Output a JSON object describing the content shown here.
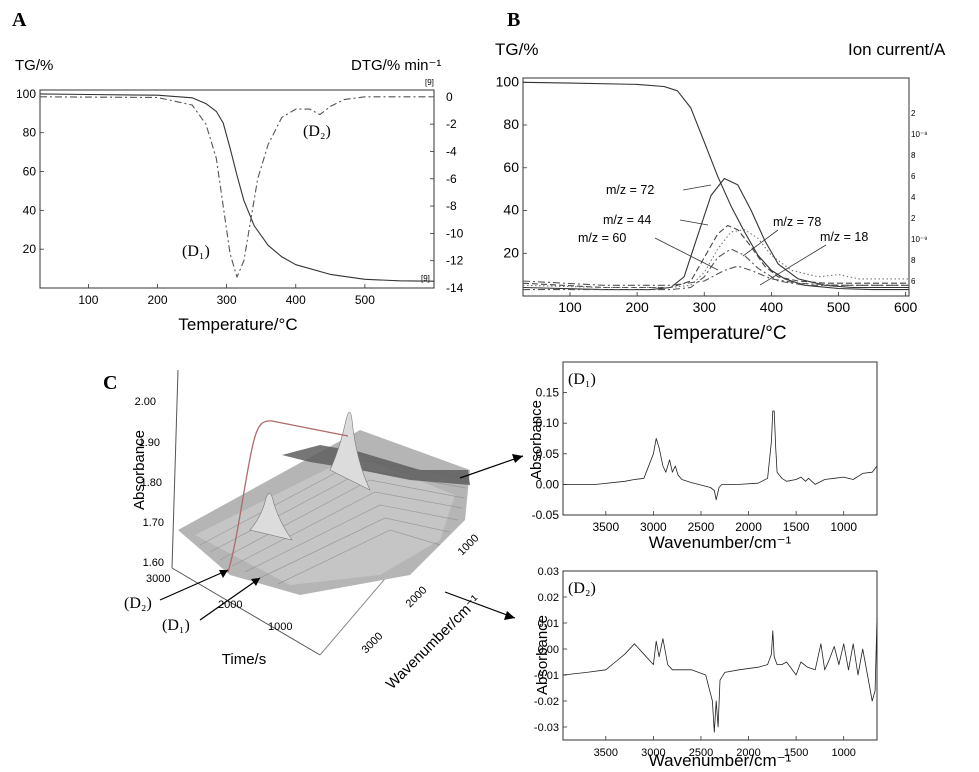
{
  "panels": {
    "A": {
      "letter": "A",
      "ylabel_left": "TG/%",
      "ylabel_right": "DTG/% min⁻¹",
      "xlabel": "Temperature/°C",
      "right_top_mark": "[9]",
      "right_bottom_mark": "[9]",
      "label_D1": "(D₁)",
      "label_D2": "(D₂)"
    },
    "B": {
      "letter": "B",
      "ylabel_left": "TG/%",
      "ylabel_right": "Ion current/A",
      "xlabel": "Temperature/°C",
      "mz_labels": [
        "m/z = 72",
        "m/z = 44",
        "m/z = 60",
        "m/z = 78",
        "m/z = 18"
      ]
    },
    "C": {
      "letter": "C",
      "zlabel": "Absorbance",
      "time_label": "Time/s",
      "wavenumber_label": "Wavenumber/cm⁻¹",
      "z_ticks": [
        "2.00",
        "1.90",
        "1.80",
        "1.70",
        "1.60"
      ],
      "time_ticks": [
        "3000",
        "2000",
        "1000"
      ],
      "wave_ticks": [
        "1000",
        "2000",
        "3000"
      ],
      "label_D1": "(D₁)",
      "label_D2": "(D₂)"
    },
    "D1": {
      "tag": "(D₁)",
      "ylabel": "Absorbance",
      "xlabel": "Wavenumber/cm⁻¹"
    },
    "D2": {
      "tag": "(D₂)",
      "ylabel": "Absorbance",
      "xlabel": "Wavenumber/cm⁻¹"
    }
  },
  "chart_data": [
    {
      "type": "line",
      "xlabel": "Temperature/°C",
      "ylabel": "TG/%",
      "y2label": "DTG/% min⁻¹",
      "xlim": [
        30,
        600
      ],
      "ylim": [
        0,
        102
      ],
      "y2lim": [
        -14,
        0.5
      ],
      "x_ticks": [
        100,
        200,
        300,
        400,
        500
      ],
      "y_ticks": [
        20,
        40,
        60,
        80,
        100
      ],
      "y2_ticks": [
        0,
        -2,
        -4,
        -6,
        -8,
        -10,
        -12,
        -14
      ],
      "series": [
        {
          "axis": "left",
          "style": "solid",
          "x": [
            30,
            100,
            200,
            250,
            270,
            285,
            295,
            305,
            315,
            325,
            340,
            360,
            380,
            400,
            450,
            500,
            550,
            600
          ],
          "y": [
            100,
            99.7,
            99.3,
            98,
            95,
            91,
            85,
            72,
            58,
            45,
            32,
            22,
            16,
            12,
            7,
            4.5,
            3.7,
            3.5
          ]
        },
        {
          "axis": "right",
          "style": "dashdot",
          "x": [
            30,
            200,
            250,
            270,
            285,
            295,
            305,
            315,
            325,
            335,
            345,
            360,
            380,
            400,
            420,
            435,
            450,
            470,
            500,
            600
          ],
          "y": [
            0,
            -0.05,
            -0.6,
            -2,
            -4.5,
            -8,
            -11.5,
            -13.2,
            -12,
            -9,
            -6,
            -3.5,
            -1.5,
            -0.9,
            -0.9,
            -1.3,
            -0.7,
            -0.2,
            0,
            0
          ]
        }
      ]
    },
    {
      "type": "line",
      "xlabel": "Temperature/°C",
      "ylabel": "TG/%",
      "y2label": "Ion current/A",
      "xlim": [
        30,
        605
      ],
      "ylim": [
        0,
        102
      ],
      "x_ticks": [
        100,
        200,
        300,
        400,
        500,
        600
      ],
      "y_ticks": [
        20,
        40,
        60,
        80,
        100
      ],
      "y2_tick_labels": [
        "2",
        "10⁻⁸",
        "8",
        "6",
        "4",
        "2",
        "10⁻⁹",
        "8",
        "6"
      ],
      "series": [
        {
          "name": "TG",
          "style": "solid",
          "x": [
            30,
            100,
            200,
            240,
            260,
            280,
            300,
            320,
            340,
            360,
            380,
            400,
            420,
            450,
            500,
            550,
            605
          ],
          "y": [
            100,
            99.6,
            99,
            98,
            96,
            88,
            72,
            56,
            42,
            30,
            19,
            12,
            8,
            5,
            3.5,
            3,
            3
          ]
        },
        {
          "name": "m/z = 72",
          "style": "solid",
          "x": [
            30,
            150,
            220,
            250,
            270,
            290,
            310,
            330,
            350,
            370,
            390,
            410,
            440,
            480,
            520,
            560,
            605
          ],
          "y": [
            4,
            3,
            3,
            4,
            9,
            28,
            47,
            55,
            52,
            40,
            26,
            15,
            8,
            5,
            4,
            4,
            4
          ]
        },
        {
          "name": "m/z = 44",
          "style": "dashed",
          "x": [
            30,
            150,
            250,
            280,
            300,
            320,
            335,
            350,
            370,
            390,
            410,
            440,
            480,
            520,
            560,
            605
          ],
          "y": [
            6,
            4,
            4,
            7,
            18,
            29,
            33,
            31,
            23,
            14,
            9,
            7,
            6,
            6,
            6,
            6
          ]
        },
        {
          "name": "m/z = 78",
          "style": "dotted",
          "x": [
            30,
            150,
            250,
            280,
            300,
            320,
            340,
            360,
            380,
            400,
            430,
            470,
            500,
            530,
            560,
            605
          ],
          "y": [
            5,
            4,
            4,
            5,
            11,
            22,
            30,
            31,
            27,
            19,
            12,
            9,
            10,
            8,
            8,
            8
          ]
        },
        {
          "name": "m/z = 60",
          "style": "dashdot",
          "x": [
            30,
            150,
            250,
            280,
            300,
            320,
            340,
            360,
            380,
            410,
            450,
            500,
            550,
            605
          ],
          "y": [
            3,
            3,
            3,
            4,
            9,
            18,
            22,
            19,
            13,
            7,
            5,
            5,
            5,
            5
          ]
        },
        {
          "name": "m/z = 18",
          "style": "dashdot",
          "x": [
            30,
            150,
            250,
            300,
            330,
            350,
            370,
            400,
            440,
            500,
            605
          ],
          "y": [
            7,
            5,
            5,
            7,
            12,
            14,
            12,
            8,
            6,
            5,
            5
          ]
        }
      ]
    },
    {
      "type": "line",
      "ylabel": "Absorbance",
      "xlabel": "Wavenumber/cm⁻¹",
      "xlim": [
        3950,
        650
      ],
      "ylim": [
        -0.05,
        0.2
      ],
      "x_ticks": [
        3500,
        3000,
        2500,
        2000,
        1500,
        1000
      ],
      "y_ticks": [
        -0.05,
        0.0,
        0.05,
        0.1,
        0.15
      ],
      "series": [
        {
          "x": [
            3950,
            3600,
            3300,
            3200,
            3100,
            3000,
            2970,
            2940,
            2900,
            2870,
            2830,
            2800,
            2770,
            2740,
            2700,
            2600,
            2400,
            2360,
            2340,
            2310,
            2280,
            2100,
            1900,
            1800,
            1760,
            1745,
            1730,
            1715,
            1700,
            1650,
            1600,
            1500,
            1450,
            1400,
            1370,
            1300,
            1200,
            1100,
            1000,
            900,
            800,
            700,
            650
          ],
          "y": [
            0.0,
            0.0,
            0.005,
            0.008,
            0.01,
            0.05,
            0.075,
            0.06,
            0.03,
            0.02,
            0.04,
            0.02,
            0.03,
            0.015,
            0.008,
            0.003,
            -0.005,
            -0.01,
            -0.025,
            -0.005,
            0.0,
            0.0,
            0.002,
            0.01,
            0.07,
            0.12,
            0.12,
            0.06,
            0.02,
            0.01,
            0.005,
            0.008,
            0.012,
            0.005,
            0.01,
            0.0,
            0.008,
            0.01,
            0.012,
            0.008,
            0.018,
            0.02,
            0.03
          ]
        }
      ]
    },
    {
      "type": "line",
      "ylabel": "Absorbance",
      "xlabel": "Wavenumber/cm⁻¹",
      "xlim": [
        3950,
        650
      ],
      "ylim": [
        -0.035,
        0.03
      ],
      "x_ticks": [
        3500,
        3000,
        2500,
        2000,
        1500,
        1000
      ],
      "y_ticks": [
        -0.03,
        -0.02,
        -0.01,
        0.0,
        0.01,
        0.02,
        0.03
      ],
      "series": [
        {
          "x": [
            3950,
            3700,
            3500,
            3400,
            3300,
            3200,
            3100,
            3000,
            2970,
            2940,
            2900,
            2850,
            2800,
            2700,
            2600,
            2450,
            2380,
            2360,
            2340,
            2320,
            2300,
            2250,
            2100,
            1900,
            1800,
            1760,
            1745,
            1730,
            1700,
            1650,
            1600,
            1500,
            1450,
            1380,
            1300,
            1240,
            1200,
            1150,
            1100,
            1050,
            1000,
            950,
            900,
            850,
            800,
            750,
            700,
            670,
            650
          ],
          "y": [
            -0.01,
            -0.009,
            -0.008,
            -0.005,
            -0.002,
            0.002,
            -0.002,
            -0.006,
            0.003,
            -0.003,
            0.004,
            -0.006,
            -0.008,
            -0.008,
            -0.008,
            -0.01,
            -0.02,
            -0.032,
            -0.02,
            -0.03,
            -0.012,
            -0.009,
            -0.008,
            -0.007,
            -0.006,
            -0.002,
            0.007,
            -0.003,
            -0.006,
            -0.006,
            -0.005,
            -0.01,
            -0.005,
            -0.007,
            -0.008,
            0.002,
            -0.008,
            -0.004,
            0.001,
            -0.006,
            0.002,
            -0.008,
            0.002,
            -0.01,
            0.0,
            -0.01,
            -0.02,
            -0.016,
            0.012
          ]
        }
      ]
    }
  ]
}
